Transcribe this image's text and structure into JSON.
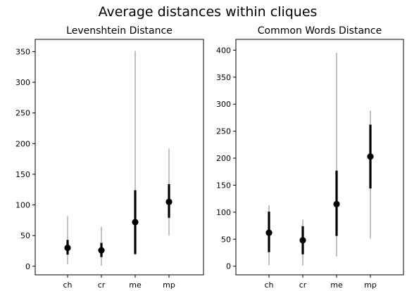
{
  "figure": {
    "suptitle": "Average distances within cliques"
  },
  "chart_data": [
    {
      "type": "errorbar",
      "title": "Levenshtein Distance",
      "xlabel": "",
      "ylabel": "",
      "categories": [
        "ch",
        "cr",
        "me",
        "mp"
      ],
      "ylim": [
        -14,
        370
      ],
      "yticks": [
        0,
        50,
        100,
        150,
        200,
        250,
        300,
        350
      ],
      "grid": false,
      "points": [
        {
          "category": "ch",
          "mean": 30,
          "inner": [
            19,
            43
          ],
          "outer": [
            3,
            82
          ]
        },
        {
          "category": "cr",
          "mean": 26,
          "inner": [
            15,
            38
          ],
          "outer": [
            1,
            64
          ]
        },
        {
          "category": "me",
          "mean": 72,
          "inner": [
            20,
            124
          ],
          "outer": [
            18,
            351
          ]
        },
        {
          "category": "mp",
          "mean": 105,
          "inner": [
            79,
            134
          ],
          "outer": [
            50,
            192
          ]
        }
      ]
    },
    {
      "type": "errorbar",
      "title": "Common Words Distance",
      "xlabel": "",
      "ylabel": "",
      "categories": [
        "ch",
        "cr",
        "me",
        "mp"
      ],
      "ylim": [
        -16,
        420
      ],
      "yticks": [
        0,
        50,
        100,
        150,
        200,
        250,
        300,
        350,
        400
      ],
      "grid": false,
      "points": [
        {
          "category": "ch",
          "mean": 62,
          "inner": [
            26,
            101
          ],
          "outer": [
            2,
            113
          ]
        },
        {
          "category": "cr",
          "mean": 48,
          "inner": [
            22,
            74
          ],
          "outer": [
            1,
            86
          ]
        },
        {
          "category": "me",
          "mean": 115,
          "inner": [
            56,
            177
          ],
          "outer": [
            18,
            395
          ]
        },
        {
          "category": "mp",
          "mean": 203,
          "inner": [
            144,
            262
          ],
          "outer": [
            51,
            288
          ]
        }
      ]
    }
  ]
}
